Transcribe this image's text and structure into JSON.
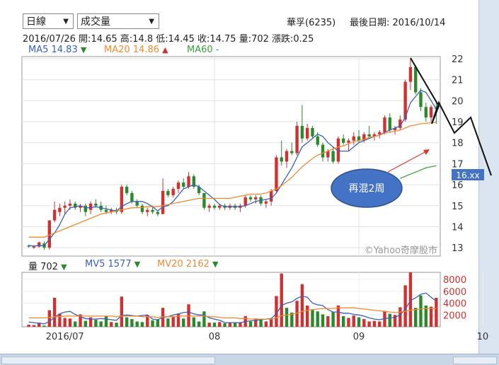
{
  "controls": {
    "period_select": "日線",
    "indicator_select": "成交量"
  },
  "header": {
    "stock": "華孚(6235)",
    "last_date": "最後日期: 2016/10/14",
    "ohlc_line": "2016/07/26  開:14.65  高:14.8  低:14.45  收:14.75  量:702  漲跌:0.25"
  },
  "ma_legend": {
    "ma5": "MA5 14.83",
    "ma20": "MA20 14.86",
    "ma60": "MA60 -"
  },
  "vol_legend": {
    "vol": "量 702",
    "mv5": "MV5 1577",
    "mv20": "MV20 2162"
  },
  "watermark": "©Yahoo奇摩股市",
  "annotation": {
    "bubble_text": "再混2周",
    "price_tag": "16.xx"
  },
  "colors": {
    "up": "#d03030",
    "down": "#2a8a2a",
    "ma5": "#3a5fb8",
    "ma20": "#f08a30",
    "ma60": "#3aa03a",
    "bubble": "#4472c4",
    "tag": "#4472c4"
  },
  "chart_data": {
    "type": "candlestick",
    "y_ticks": [
      13,
      14,
      15,
      16,
      17,
      18,
      19,
      20,
      21,
      22
    ],
    "ylim": [
      12.6,
      22.1
    ],
    "vol_ticks": [
      2000,
      4000,
      6000,
      8000
    ],
    "vol_ylim": [
      0,
      9200
    ],
    "x_labels": [
      "2016/07",
      "08",
      "09",
      "10"
    ],
    "x_label_index": [
      7,
      36,
      64,
      88
    ],
    "ohlc": [
      [
        13.1,
        13.15,
        13.0,
        13.05
      ],
      [
        13.0,
        13.1,
        12.95,
        13.05
      ],
      [
        13.05,
        13.3,
        13.0,
        13.25
      ],
      [
        13.2,
        13.3,
        12.9,
        13.0
      ],
      [
        13.0,
        14.3,
        12.9,
        14.3
      ],
      [
        14.3,
        15.2,
        14.2,
        14.8
      ],
      [
        14.7,
        15.1,
        14.5,
        14.9
      ],
      [
        14.9,
        15.2,
        14.6,
        15.0
      ],
      [
        15.0,
        15.3,
        14.8,
        15.1
      ],
      [
        15.1,
        15.2,
        14.8,
        14.9
      ],
      [
        14.9,
        15.1,
        14.7,
        15.0
      ],
      [
        15.0,
        15.1,
        14.5,
        14.7
      ],
      [
        14.8,
        15.2,
        14.6,
        15.1
      ],
      [
        15.1,
        15.3,
        14.9,
        15.0
      ],
      [
        15.0,
        15.2,
        14.7,
        14.8
      ],
      [
        14.8,
        15.0,
        14.6,
        14.7
      ],
      [
        14.7,
        14.9,
        14.6,
        14.8
      ],
      [
        14.8,
        14.9,
        14.6,
        14.7
      ],
      [
        14.7,
        16.0,
        14.6,
        15.9
      ],
      [
        15.9,
        16.0,
        15.5,
        15.6
      ],
      [
        15.6,
        15.7,
        15.1,
        15.2
      ],
      [
        15.2,
        15.3,
        14.9,
        15.0
      ],
      [
        15.0,
        15.1,
        14.6,
        14.7
      ],
      [
        14.7,
        14.9,
        14.5,
        14.8
      ],
      [
        14.8,
        15.0,
        14.6,
        14.7
      ],
      [
        14.7,
        14.8,
        14.5,
        14.6
      ],
      [
        14.6,
        16.3,
        14.6,
        15.7
      ],
      [
        15.7,
        15.8,
        15.4,
        15.5
      ],
      [
        15.5,
        15.9,
        15.4,
        15.8
      ],
      [
        15.8,
        16.2,
        15.6,
        16.1
      ],
      [
        16.1,
        16.3,
        15.8,
        15.9
      ],
      [
        15.9,
        16.6,
        15.8,
        16.4
      ],
      [
        16.4,
        16.5,
        15.8,
        15.9
      ],
      [
        15.9,
        16.0,
        15.5,
        15.6
      ],
      [
        15.6,
        15.6,
        14.8,
        14.9
      ],
      [
        14.9,
        15.1,
        14.7,
        15.0
      ],
      [
        15.0,
        15.1,
        14.8,
        14.9
      ],
      [
        14.9,
        15.1,
        14.8,
        15.0
      ],
      [
        15.0,
        15.1,
        14.8,
        14.9
      ],
      [
        14.9,
        15.1,
        14.8,
        15.0
      ],
      [
        15.0,
        15.1,
        14.8,
        14.9
      ],
      [
        14.9,
        15.1,
        14.7,
        15.0
      ],
      [
        15.0,
        15.5,
        14.9,
        15.4
      ],
      [
        15.4,
        15.5,
        15.2,
        15.3
      ],
      [
        15.3,
        15.5,
        15.1,
        15.4
      ],
      [
        15.4,
        15.5,
        15.0,
        15.1
      ],
      [
        15.1,
        15.3,
        14.9,
        15.2
      ],
      [
        15.2,
        15.8,
        15.0,
        15.7
      ],
      [
        15.7,
        17.4,
        15.6,
        17.3
      ],
      [
        17.3,
        18.1,
        16.9,
        17.1
      ],
      [
        17.1,
        17.7,
        16.8,
        17.6
      ],
      [
        17.6,
        18.0,
        17.4,
        17.5
      ],
      [
        17.5,
        19.0,
        17.4,
        18.8
      ],
      [
        18.8,
        19.8,
        18.0,
        18.2
      ],
      [
        18.2,
        18.9,
        18.1,
        18.7
      ],
      [
        18.7,
        18.8,
        18.2,
        18.3
      ],
      [
        18.3,
        18.5,
        17.8,
        17.9
      ],
      [
        17.9,
        18.0,
        17.1,
        17.3
      ],
      [
        17.3,
        17.7,
        17.1,
        17.6
      ],
      [
        17.6,
        17.8,
        17.0,
        17.1
      ],
      [
        17.1,
        18.3,
        17.0,
        18.2
      ],
      [
        18.2,
        18.4,
        17.9,
        18.0
      ],
      [
        18.0,
        18.2,
        17.6,
        18.1
      ],
      [
        18.1,
        18.5,
        17.9,
        18.3
      ],
      [
        18.3,
        18.6,
        18.0,
        18.1
      ],
      [
        18.1,
        18.5,
        18.0,
        18.4
      ],
      [
        18.4,
        18.8,
        18.2,
        18.3
      ],
      [
        18.3,
        18.5,
        18.1,
        18.4
      ],
      [
        18.4,
        18.6,
        18.2,
        18.5
      ],
      [
        18.5,
        19.3,
        18.4,
        19.2
      ],
      [
        19.2,
        19.4,
        18.5,
        18.6
      ],
      [
        18.6,
        18.8,
        18.4,
        18.7
      ],
      [
        18.7,
        19.3,
        18.6,
        19.1
      ],
      [
        19.1,
        21.0,
        19.0,
        20.9
      ],
      [
        20.9,
        22.0,
        20.5,
        21.6
      ],
      [
        21.6,
        21.7,
        20.3,
        20.4
      ],
      [
        20.4,
        20.6,
        19.5,
        19.7
      ],
      [
        19.7,
        19.9,
        19.0,
        19.2
      ],
      [
        19.2,
        19.8,
        19.0,
        19.7
      ],
      [
        19.7,
        19.9,
        18.9,
        19.6
      ]
    ],
    "volume": [
      [
        350,
        1
      ],
      [
        300,
        1
      ],
      [
        700,
        1
      ],
      [
        200,
        0
      ],
      [
        2800,
        1
      ],
      [
        4900,
        1
      ],
      [
        2200,
        1
      ],
      [
        1500,
        1
      ],
      [
        1400,
        1
      ],
      [
        900,
        0
      ],
      [
        2100,
        1
      ],
      [
        1000,
        0
      ],
      [
        1600,
        1
      ],
      [
        1200,
        0
      ],
      [
        900,
        0
      ],
      [
        1800,
        0
      ],
      [
        800,
        1
      ],
      [
        700,
        0
      ],
      [
        5100,
        1
      ],
      [
        1600,
        0
      ],
      [
        1300,
        0
      ],
      [
        900,
        0
      ],
      [
        800,
        0
      ],
      [
        2000,
        1
      ],
      [
        1100,
        0
      ],
      [
        1200,
        0
      ],
      [
        3200,
        1
      ],
      [
        1400,
        0
      ],
      [
        1800,
        1
      ],
      [
        2200,
        1
      ],
      [
        1400,
        0
      ],
      [
        3800,
        1
      ],
      [
        1600,
        0
      ],
      [
        900,
        0
      ],
      [
        2600,
        0
      ],
      [
        700,
        1
      ],
      [
        700,
        0
      ],
      [
        800,
        1
      ],
      [
        600,
        0
      ],
      [
        700,
        1
      ],
      [
        650,
        0
      ],
      [
        700,
        1
      ],
      [
        1800,
        1
      ],
      [
        900,
        0
      ],
      [
        1400,
        1
      ],
      [
        1300,
        0
      ],
      [
        900,
        1
      ],
      [
        1400,
        1
      ],
      [
        5200,
        1
      ],
      [
        9000,
        1
      ],
      [
        3200,
        0
      ],
      [
        2400,
        0
      ],
      [
        4400,
        1
      ],
      [
        7200,
        1
      ],
      [
        3600,
        1
      ],
      [
        2900,
        0
      ],
      [
        2600,
        0
      ],
      [
        2100,
        0
      ],
      [
        1800,
        1
      ],
      [
        2500,
        0
      ],
      [
        3600,
        1
      ],
      [
        1800,
        0
      ],
      [
        1500,
        1
      ],
      [
        1900,
        1
      ],
      [
        1600,
        0
      ],
      [
        1300,
        1
      ],
      [
        900,
        1
      ],
      [
        1000,
        1
      ],
      [
        900,
        1
      ],
      [
        2700,
        1
      ],
      [
        2200,
        0
      ],
      [
        2000,
        1
      ],
      [
        3300,
        1
      ],
      [
        7000,
        1
      ],
      [
        9200,
        1
      ],
      [
        3200,
        0
      ],
      [
        5300,
        0
      ],
      [
        3600,
        0
      ],
      [
        3400,
        1
      ],
      [
        4900,
        1
      ]
    ],
    "ma5": [
      13.1,
      13.08,
      13.1,
      13.1,
      13.4,
      13.7,
      14.1,
      14.6,
      14.9,
      14.95,
      15.0,
      14.9,
      14.9,
      14.95,
      14.9,
      14.85,
      14.8,
      14.75,
      14.95,
      15.1,
      15.2,
      15.2,
      15.2,
      15.1,
      14.95,
      14.75,
      14.95,
      15.0,
      15.2,
      15.5,
      15.8,
      15.9,
      16.0,
      15.9,
      15.7,
      15.5,
      15.3,
      15.05,
      14.95,
      14.95,
      14.95,
      14.95,
      15.0,
      15.1,
      15.2,
      15.25,
      15.3,
      15.35,
      15.6,
      16.0,
      16.4,
      16.8,
      17.3,
      17.8,
      18.0,
      18.2,
      18.4,
      18.3,
      18.0,
      17.8,
      17.6,
      17.6,
      17.6,
      17.8,
      18.0,
      18.1,
      18.2,
      18.3,
      18.35,
      18.5,
      18.6,
      18.7,
      18.8,
      19.2,
      19.9,
      20.2,
      20.5,
      20.4,
      20.0,
      19.6
    ],
    "ma20": [
      13.5,
      13.5,
      13.5,
      13.5,
      13.6,
      13.7,
      13.8,
      13.9,
      14.0,
      14.1,
      14.2,
      14.3,
      14.4,
      14.5,
      14.6,
      14.65,
      14.7,
      14.75,
      14.8,
      14.85,
      14.9,
      14.9,
      14.92,
      14.95,
      14.95,
      14.95,
      15.0,
      15.05,
      15.1,
      15.15,
      15.2,
      15.25,
      15.3,
      15.35,
      15.35,
      15.35,
      15.35,
      15.35,
      15.35,
      15.35,
      15.4,
      15.45,
      15.5,
      15.55,
      15.55,
      15.55,
      15.6,
      15.7,
      15.8,
      15.95,
      16.15,
      16.35,
      16.6,
      16.85,
      17.05,
      17.25,
      17.4,
      17.5,
      17.6,
      17.7,
      17.8,
      17.85,
      17.95,
      18.05,
      18.1,
      18.15,
      18.25,
      18.3,
      18.35,
      18.45,
      18.5,
      18.55,
      18.6,
      18.7,
      18.8,
      18.85,
      18.9,
      18.92,
      18.95,
      18.97
    ],
    "ma60": [
      16.3,
      16.4,
      16.5,
      16.6,
      16.7,
      16.8,
      16.85,
      16.9
    ],
    "ma60_start": 72,
    "mv5": [
      800,
      700,
      600,
      500,
      900,
      1600,
      2200,
      2500,
      2600,
      2100,
      1700,
      1400,
      1300,
      1300,
      1400,
      1300,
      1200,
      1100,
      1900,
      2000,
      1900,
      1800,
      1900,
      2000,
      1300,
      1200,
      1600,
      1700,
      2000,
      2200,
      2400,
      2500,
      2200,
      2000,
      2000,
      1500,
      1300,
      1100,
      700,
      700,
      700,
      700,
      900,
      1000,
      1100,
      1200,
      1300,
      1400,
      2200,
      3600,
      4000,
      4200,
      4800,
      5200,
      5000,
      4000,
      3700,
      3600,
      2900,
      2500,
      2500,
      2300,
      2300,
      2100,
      2000,
      1800,
      1500,
      1300,
      1200,
      1400,
      1500,
      1600,
      2000,
      3000,
      4400,
      4900,
      5500,
      5700,
      5000,
      4300
    ],
    "mv20": [
      1500,
      1500,
      1500,
      1500,
      1600,
      1700,
      1700,
      1800,
      1800,
      1800,
      1800,
      1800,
      1800,
      1800,
      1800,
      1800,
      1800,
      1700,
      1800,
      1800,
      1800,
      1800,
      1700,
      1700,
      1700,
      1600,
      1700,
      1700,
      1700,
      1800,
      1800,
      1800,
      1800,
      1800,
      1800,
      1700,
      1700,
      1600,
      1500,
      1500,
      1500,
      1400,
      1400,
      1300,
      1300,
      1300,
      1300,
      1300,
      1500,
      1900,
      2000,
      2100,
      2300,
      2600,
      2800,
      2900,
      3000,
      3100,
      3100,
      3100,
      3200,
      3200,
      3200,
      3200,
      3100,
      3000,
      2900,
      2800,
      2700,
      2600,
      2500,
      2400,
      2500,
      2600,
      2800,
      2900,
      3000,
      3100,
      3100,
      3100
    ]
  }
}
